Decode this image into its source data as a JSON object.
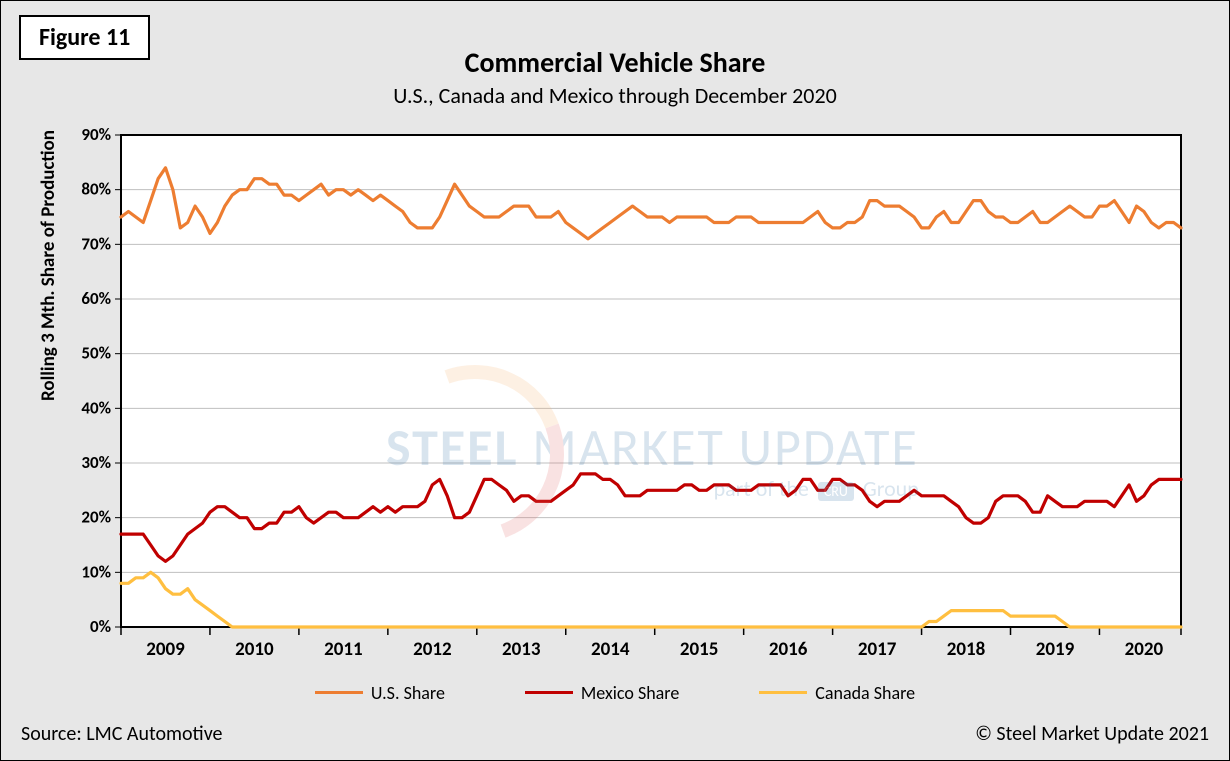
{
  "figure_label": "Figure 11",
  "title": "Commercial Vehicle Share",
  "subtitle": "U.S., Canada and Mexico through December 2020",
  "ylabel": "Rolling 3 Mth. Share of Production",
  "source": "Source: LMC Automotive",
  "copyright": "© Steel Market Update 2021",
  "watermark": {
    "line1_a": "STEEL",
    "line1_b": " MARKET UPDATE",
    "sub_prefix": "part of the",
    "chip": "CRU",
    "sub_suffix": "Group"
  },
  "chart": {
    "type": "line",
    "background_color": "#ffffff",
    "outer_background": "#e7e7e7",
    "plot_border_color": "#000000",
    "grid_color": "#bfbfbf",
    "grid_width": 1,
    "ylim": [
      0,
      90
    ],
    "ytick_step": 10,
    "ytick_format_pct": true,
    "ytick_fontsize": 17,
    "ytick_fontweight": 700,
    "xtick_fontsize": 19,
    "xtick_fontweight": 700,
    "title_fontsize": 28,
    "title_fontweight": 700,
    "subtitle_fontsize": 22,
    "subtitle_fontweight": 400,
    "ylabel_fontsize": 19,
    "ylabel_fontweight": 700,
    "line_width": 3.2,
    "n_points": 144,
    "x_start_year": 2009,
    "x_end_year_exclusive": 2021,
    "x_major_labels": [
      "2009",
      "2010",
      "2011",
      "2012",
      "2013",
      "2014",
      "2015",
      "2016",
      "2017",
      "2018",
      "2019",
      "2020"
    ],
    "legend": {
      "items": [
        {
          "label": "U.S. Share",
          "color": "#ed7d31"
        },
        {
          "label": "Mexico Share",
          "color": "#c00000"
        },
        {
          "label": "Canada Share",
          "color": "#ffbf40"
        }
      ],
      "fontsize": 18
    },
    "series": [
      {
        "name": "U.S. Share",
        "color": "#ed7d31",
        "values": [
          75,
          76,
          75,
          74,
          78,
          82,
          84,
          80,
          73,
          74,
          77,
          75,
          72,
          74,
          77,
          79,
          80,
          80,
          82,
          82,
          81,
          81,
          79,
          79,
          78,
          79,
          80,
          81,
          79,
          80,
          80,
          79,
          80,
          79,
          78,
          79,
          78,
          77,
          76,
          74,
          73,
          73,
          73,
          75,
          78,
          81,
          79,
          77,
          76,
          75,
          75,
          75,
          76,
          77,
          77,
          77,
          75,
          75,
          75,
          76,
          74,
          73,
          72,
          71,
          72,
          73,
          74,
          75,
          76,
          77,
          76,
          75,
          75,
          75,
          74,
          75,
          75,
          75,
          75,
          75,
          74,
          74,
          74,
          75,
          75,
          75,
          74,
          74,
          74,
          74,
          74,
          74,
          74,
          75,
          76,
          74,
          73,
          73,
          74,
          74,
          75,
          78,
          78,
          77,
          77,
          77,
          76,
          75,
          73,
          73,
          75,
          76,
          74,
          74,
          76,
          78,
          78,
          76,
          75,
          75,
          74,
          74,
          75,
          76,
          74,
          74,
          75,
          76,
          77,
          76,
          75,
          75,
          77,
          77,
          78,
          76,
          74,
          77,
          76,
          74,
          73,
          74,
          74,
          73
        ]
      },
      {
        "name": "Mexico Share",
        "color": "#c00000",
        "values": [
          17,
          17,
          17,
          17,
          15,
          13,
          12,
          13,
          15,
          17,
          18,
          19,
          21,
          22,
          22,
          21,
          20,
          20,
          18,
          18,
          19,
          19,
          21,
          21,
          22,
          20,
          19,
          20,
          21,
          21,
          20,
          20,
          20,
          21,
          22,
          21,
          22,
          21,
          22,
          22,
          22,
          23,
          26,
          27,
          24,
          20,
          20,
          21,
          24,
          27,
          27,
          26,
          25,
          23,
          24,
          24,
          23,
          23,
          23,
          24,
          25,
          26,
          28,
          28,
          28,
          27,
          27,
          26,
          24,
          24,
          24,
          25,
          25,
          25,
          25,
          25,
          26,
          26,
          25,
          25,
          26,
          26,
          26,
          25,
          25,
          25,
          26,
          26,
          26,
          26,
          24,
          25,
          27,
          27,
          25,
          25,
          27,
          27,
          26,
          26,
          25,
          23,
          22,
          23,
          23,
          23,
          24,
          25,
          24,
          24,
          24,
          24,
          23,
          22,
          20,
          19,
          19,
          20,
          23,
          24,
          24,
          24,
          23,
          21,
          21,
          24,
          23,
          22,
          22,
          22,
          23,
          23,
          23,
          23,
          22,
          24,
          26,
          23,
          24,
          26,
          27,
          27,
          27,
          27
        ]
      },
      {
        "name": "Canada Share",
        "color": "#ffbf40",
        "values": [
          8,
          8,
          9,
          9,
          10,
          9,
          7,
          6,
          6,
          7,
          5,
          4,
          3,
          2,
          1,
          0,
          0,
          0,
          0,
          0,
          0,
          0,
          0,
          0,
          0,
          0,
          0,
          0,
          0,
          0,
          0,
          0,
          0,
          0,
          0,
          0,
          0,
          0,
          0,
          0,
          0,
          0,
          0,
          0,
          0,
          0,
          0,
          0,
          0,
          0,
          0,
          0,
          0,
          0,
          0,
          0,
          0,
          0,
          0,
          0,
          0,
          0,
          0,
          0,
          0,
          0,
          0,
          0,
          0,
          0,
          0,
          0,
          0,
          0,
          0,
          0,
          0,
          0,
          0,
          0,
          0,
          0,
          0,
          0,
          0,
          0,
          0,
          0,
          0,
          0,
          0,
          0,
          0,
          0,
          0,
          0,
          0,
          0,
          0,
          0,
          0,
          0,
          0,
          0,
          0,
          0,
          0,
          0,
          0,
          1,
          1,
          2,
          3,
          3,
          3,
          3,
          3,
          3,
          3,
          3,
          2,
          2,
          2,
          2,
          2,
          2,
          2,
          1,
          0,
          0,
          0,
          0,
          0,
          0,
          0,
          0,
          0,
          0,
          0,
          0,
          0,
          0,
          0,
          0
        ]
      }
    ]
  }
}
